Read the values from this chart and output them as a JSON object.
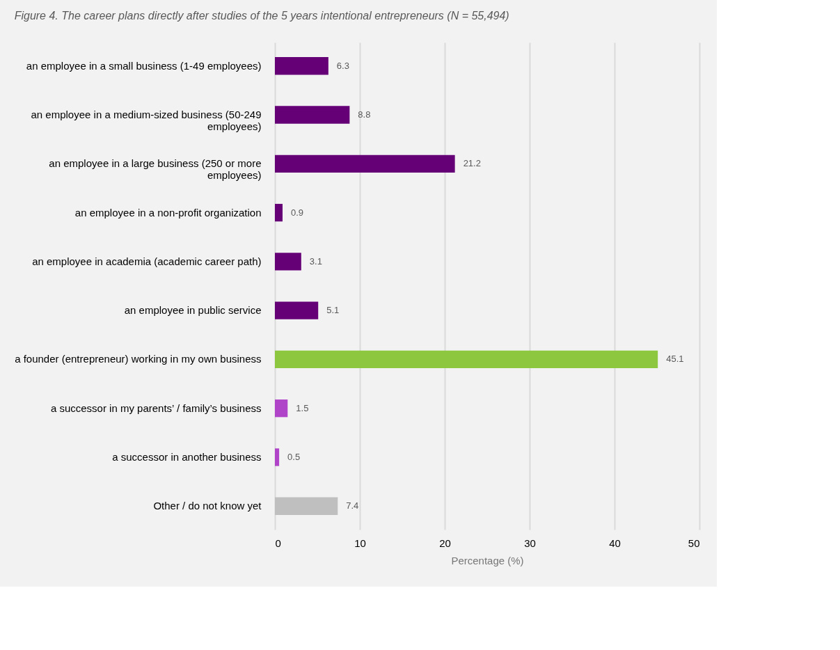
{
  "chart_data": {
    "type": "bar",
    "orientation": "horizontal",
    "title": "Figure 4. The career plans directly after studies of the 5 years intentional entrepreneurs (N = 55,494)",
    "categories": [
      "an employee in a small business (1-49 employees)",
      "an employee in a medium-sized business (50-249 employees)",
      "an employee in a large business (250 or more employees)",
      "an employee in a non-profit organization",
      "an employee in academia (academic career path)",
      "an employee in public service",
      "a founder (entrepreneur) working in my own business",
      "a successor in my parents’ / family’s business",
      "a successor in another business",
      "Other / do not know yet"
    ],
    "values": [
      6.3,
      8.8,
      21.2,
      0.9,
      3.1,
      5.1,
      45.1,
      1.5,
      0.5,
      7.4
    ],
    "colors": [
      "#660077",
      "#660077",
      "#660077",
      "#660077",
      "#660077",
      "#660077",
      "#8dc63f",
      "#b044c8",
      "#b044c8",
      "#bfbfbf"
    ],
    "xlim": [
      0,
      50
    ],
    "xticks": [
      0,
      10,
      20,
      30,
      40,
      50
    ],
    "xlabel": "Percentage (%)",
    "grid": "x",
    "data_labels": true
  }
}
